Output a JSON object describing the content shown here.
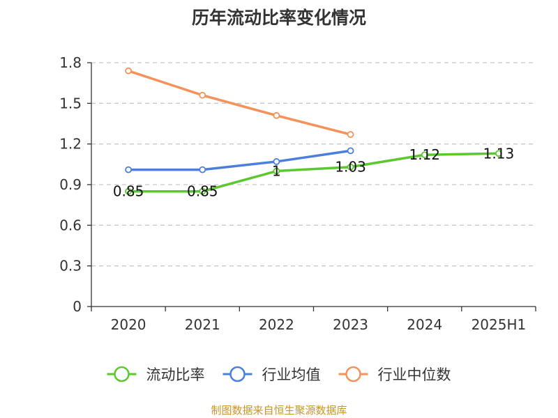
{
  "chart_data": {
    "type": "line",
    "title": "历年流动比率变化情况",
    "categories": [
      "2020",
      "2021",
      "2022",
      "2023",
      "2024",
      "2025H1"
    ],
    "ylim": [
      0,
      1.8
    ],
    "yticks": [
      "0",
      "0.3",
      "0.6",
      "0.9",
      "1.2",
      "1.5",
      "1.8"
    ],
    "grid": true,
    "legend_position": "bottom",
    "series": [
      {
        "name": "流动比率",
        "color": "#5cc830",
        "values": [
          0.85,
          0.85,
          1.0,
          1.03,
          1.12,
          1.13
        ],
        "labels": [
          "0.85",
          "0.85",
          "1",
          "1.03",
          "1.12",
          "1.13"
        ]
      },
      {
        "name": "行业均值",
        "color": "#4b7fdc",
        "values": [
          1.01,
          1.01,
          1.07,
          1.15,
          null,
          null
        ]
      },
      {
        "name": "行业中位数",
        "color": "#f5925a",
        "values": [
          1.74,
          1.56,
          1.41,
          1.27,
          null,
          null
        ]
      }
    ]
  },
  "source_text": "制图数据来自恒生聚源数据库"
}
